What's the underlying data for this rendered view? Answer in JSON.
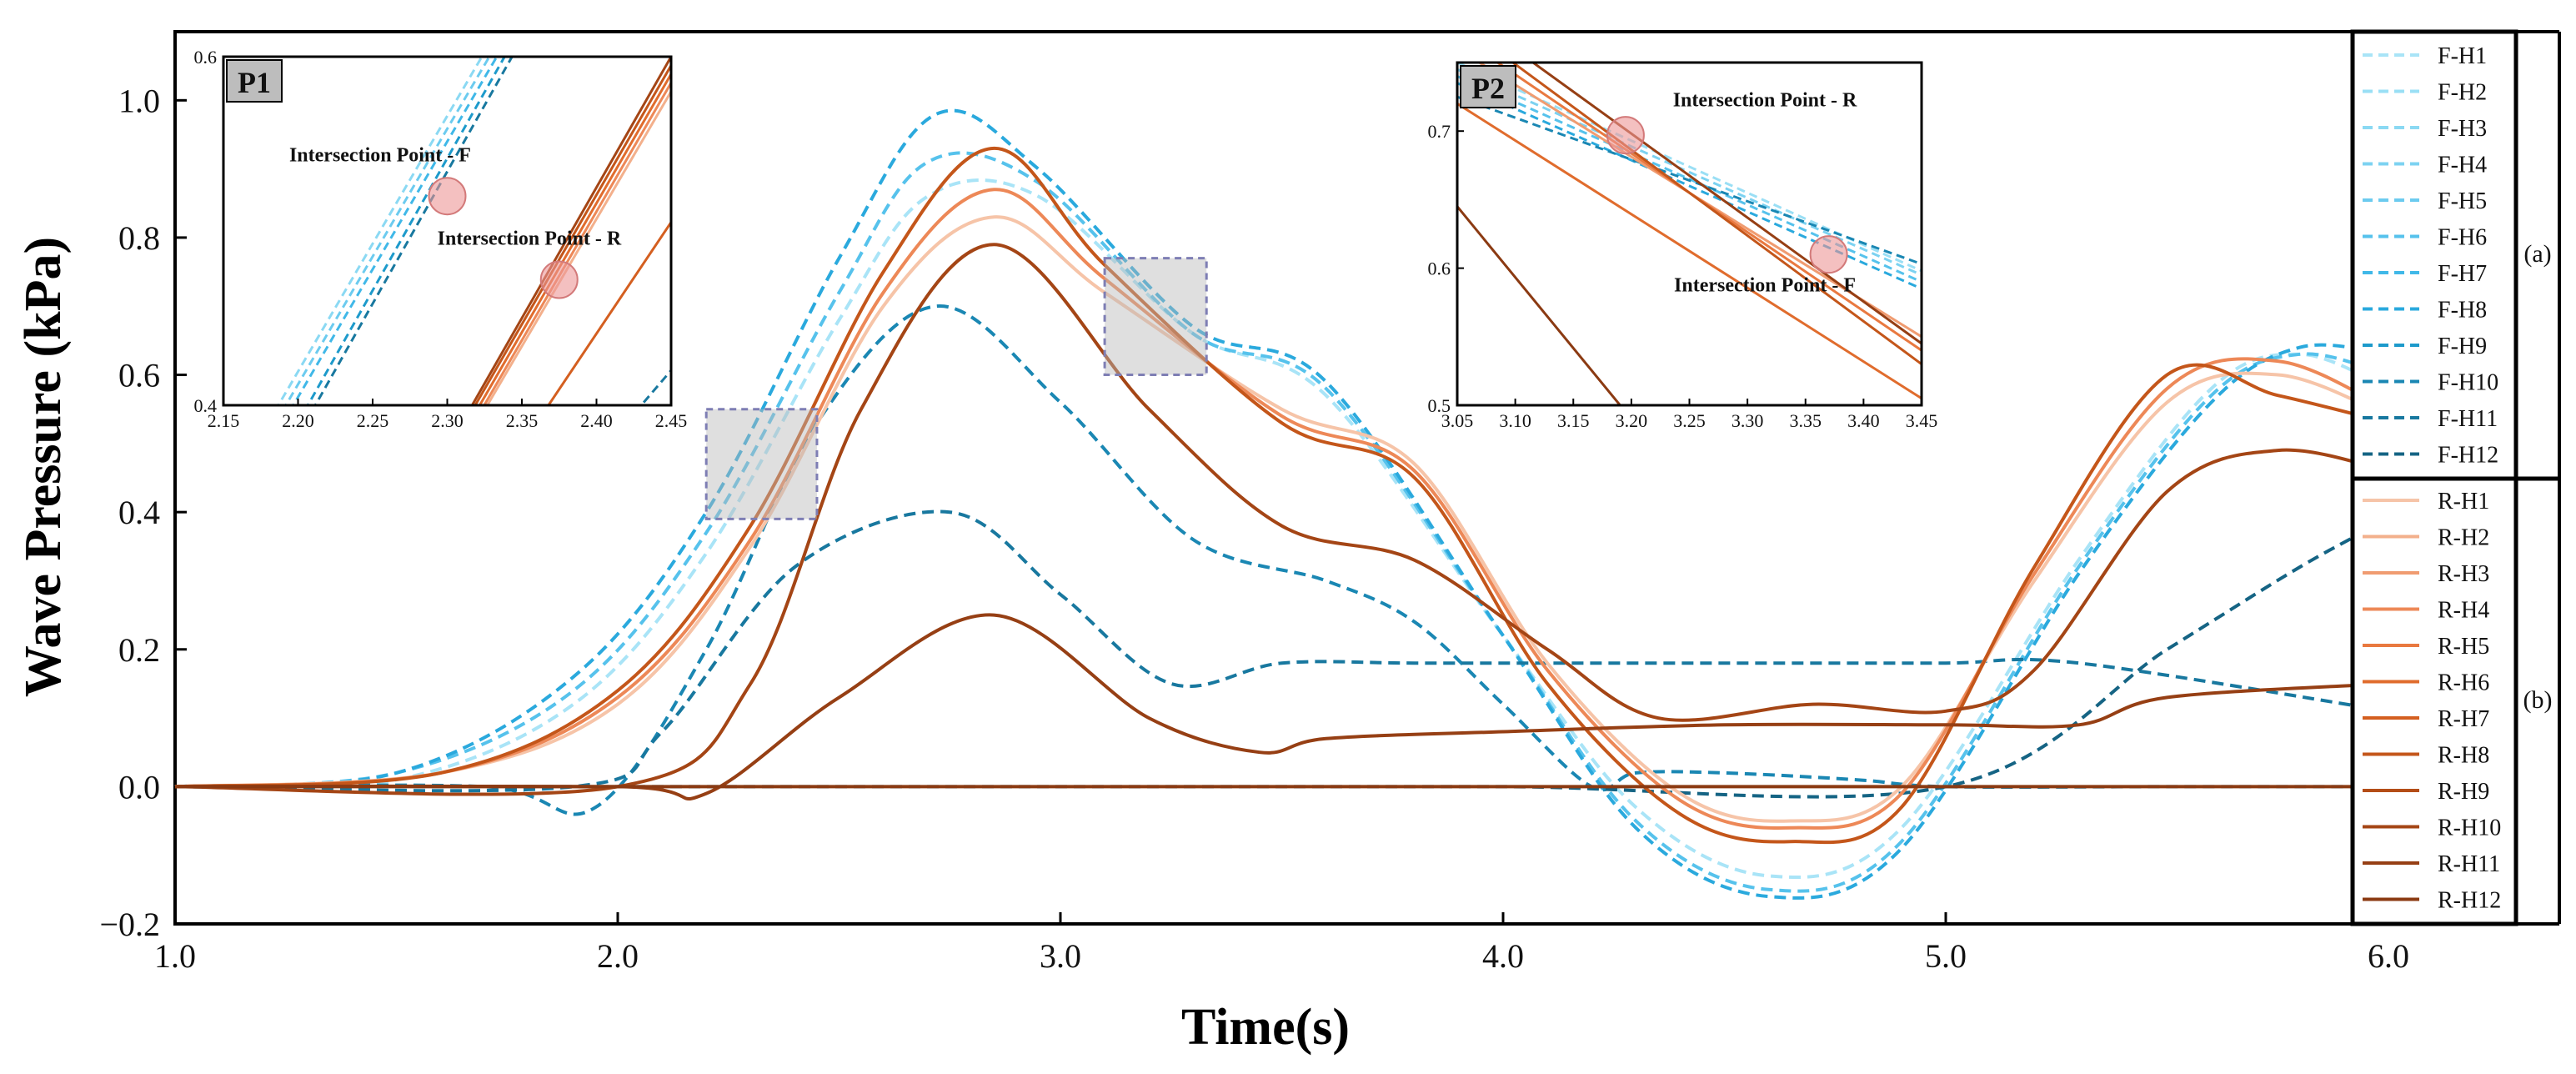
{
  "chart_data": {
    "type": "line",
    "xlabel": "Time(s)",
    "ylabel": "Wave Pressure (kPa)",
    "xlim": [
      1.0,
      6.0
    ],
    "ylim": [
      -0.2,
      1.1
    ],
    "x_ticks": [
      "1.0",
      "2.0",
      "3.0",
      "4.0",
      "5.0",
      "6.0"
    ],
    "y_ticks": [
      "−0.2",
      "0.0",
      "0.2",
      "0.4",
      "0.6",
      "0.8",
      "1.0"
    ],
    "legend_groups": [
      {
        "label": "(a)",
        "entries": [
          "F-H1",
          "F-H2",
          "F-H3",
          "F-H4",
          "F-H5",
          "F-H6",
          "F-H7",
          "F-H8",
          "F-H9",
          "F-H10",
          "F-H11",
          "F-H12"
        ],
        "style": "dashed"
      },
      {
        "label": "(b)",
        "entries": [
          "R-H1",
          "R-H2",
          "R-H3",
          "R-H4",
          "R-H5",
          "R-H6",
          "R-H7",
          "R-H8",
          "R-H9",
          "R-H10",
          "R-H11",
          "R-H12"
        ],
        "style": "solid"
      }
    ],
    "colors": {
      "F": [
        "#a9e4f7",
        "#9adff5",
        "#8bd9f3",
        "#7cd2f1",
        "#6ccbef",
        "#56c2ec",
        "#40b8e8",
        "#2aa9dd",
        "#1d9acb",
        "#1a87b3",
        "#18789f",
        "#156484"
      ],
      "R": [
        "#f6c4a8",
        "#f3b08c",
        "#f09c71",
        "#ed8857",
        "#e97940",
        "#e06c2d",
        "#d45f20",
        "#c4561a",
        "#b44d17",
        "#a44515",
        "#963f14",
        "#8b3a12"
      ]
    },
    "series_F": [
      {
        "name": "F-H1",
        "x": [
          1.0,
          1.5,
          1.9,
          2.2,
          2.5,
          2.7,
          2.95,
          3.3,
          3.6,
          4.0,
          4.3,
          4.6,
          4.9,
          5.3,
          5.6,
          5.8,
          6.0
        ],
        "y": [
          0,
          0.01,
          0.12,
          0.34,
          0.68,
          0.86,
          0.86,
          0.66,
          0.57,
          0.22,
          -0.03,
          -0.13,
          -0.06,
          0.33,
          0.58,
          0.63,
          0.58
        ]
      },
      {
        "name": "F-H6",
        "x": [
          1.0,
          1.5,
          1.9,
          2.2,
          2.5,
          2.7,
          2.95,
          3.3,
          3.6,
          4.0,
          4.3,
          4.6,
          4.9,
          5.3,
          5.6,
          5.8,
          6.0
        ],
        "y": [
          0,
          0.02,
          0.14,
          0.37,
          0.72,
          0.91,
          0.88,
          0.66,
          0.58,
          0.22,
          -0.05,
          -0.15,
          -0.08,
          0.32,
          0.57,
          0.63,
          0.6
        ]
      },
      {
        "name": "F-H8",
        "x": [
          1.0,
          1.5,
          1.9,
          2.2,
          2.5,
          2.72,
          2.95,
          3.3,
          3.6,
          4.0,
          4.3,
          4.6,
          4.9,
          5.3,
          5.6,
          5.8,
          6.0
        ],
        "y": [
          0,
          0.02,
          0.16,
          0.4,
          0.77,
          0.98,
          0.9,
          0.67,
          0.59,
          0.22,
          -0.06,
          -0.16,
          -0.09,
          0.31,
          0.56,
          0.64,
          0.63
        ]
      },
      {
        "name": "F-H10",
        "x": [
          1.0,
          1.7,
          1.95,
          2.2,
          2.45,
          2.72,
          3.0,
          3.3,
          3.6,
          3.8,
          4.0,
          4.2,
          4.3,
          4.5,
          4.8,
          5.0,
          5.5,
          6.0
        ],
        "y": [
          0,
          0,
          -0.03,
          0.2,
          0.53,
          0.7,
          0.56,
          0.36,
          0.3,
          0.24,
          0.12,
          0.0,
          0.02,
          0.02,
          0.01,
          0.0,
          0.0,
          0.0
        ]
      },
      {
        "name": "F-H11",
        "x": [
          1.0,
          1.9,
          2.1,
          2.4,
          2.75,
          3.0,
          3.25,
          3.5,
          3.8,
          4.2,
          4.6,
          5.0,
          5.3,
          6.0
        ],
        "y": [
          0,
          0,
          0.08,
          0.32,
          0.4,
          0.28,
          0.15,
          0.18,
          0.18,
          0.18,
          0.18,
          0.18,
          0.18,
          0.11
        ]
      },
      {
        "name": "F-H12",
        "x": [
          1.0,
          2.0,
          3.0,
          4.0,
          5.0,
          5.5,
          5.8,
          6.0
        ],
        "y": [
          0,
          0,
          0,
          0,
          0,
          0.2,
          0.32,
          0.39
        ]
      }
    ],
    "series_R": [
      {
        "name": "R-H1",
        "x": [
          1.0,
          1.6,
          2.0,
          2.3,
          2.6,
          2.85,
          3.1,
          3.5,
          3.8,
          4.1,
          4.4,
          4.65,
          4.9,
          5.2,
          5.5,
          5.75,
          6.0
        ],
        "y": [
          0,
          0.02,
          0.12,
          0.35,
          0.7,
          0.83,
          0.72,
          0.55,
          0.47,
          0.18,
          -0.01,
          -0.05,
          0.0,
          0.3,
          0.56,
          0.6,
          0.54
        ]
      },
      {
        "name": "R-H4",
        "x": [
          1.0,
          1.6,
          2.0,
          2.3,
          2.6,
          2.85,
          3.1,
          3.5,
          3.8,
          4.1,
          4.4,
          4.65,
          4.9,
          5.2,
          5.5,
          5.75,
          6.0
        ],
        "y": [
          0,
          0.02,
          0.13,
          0.36,
          0.72,
          0.87,
          0.74,
          0.54,
          0.46,
          0.17,
          -0.02,
          -0.06,
          -0.01,
          0.31,
          0.58,
          0.62,
          0.55
        ]
      },
      {
        "name": "R-H8",
        "x": [
          1.0,
          1.6,
          2.0,
          2.3,
          2.6,
          2.85,
          3.1,
          3.5,
          3.8,
          4.1,
          4.4,
          4.65,
          4.9,
          5.2,
          5.5,
          5.75,
          6.0
        ],
        "y": [
          0,
          0.02,
          0.14,
          0.38,
          0.75,
          0.93,
          0.76,
          0.53,
          0.45,
          0.15,
          -0.04,
          -0.08,
          -0.03,
          0.32,
          0.6,
          0.57,
          0.53
        ]
      },
      {
        "name": "R-H10",
        "x": [
          1.0,
          2.0,
          2.3,
          2.55,
          2.85,
          3.2,
          3.5,
          3.8,
          4.1,
          4.35,
          4.7,
          5.0,
          5.2,
          5.5,
          5.75,
          6.0
        ],
        "y": [
          0,
          0,
          0.15,
          0.55,
          0.79,
          0.55,
          0.38,
          0.33,
          0.2,
          0.1,
          0.12,
          0.11,
          0.17,
          0.43,
          0.49,
          0.46
        ]
      },
      {
        "name": "R-H11",
        "x": [
          1.0,
          2.0,
          2.2,
          2.5,
          2.85,
          3.2,
          3.45,
          3.6,
          4.0,
          4.5,
          5.0,
          5.3,
          5.5,
          6.0
        ],
        "y": [
          0,
          0,
          -0.01,
          0.13,
          0.25,
          0.1,
          0.05,
          0.07,
          0.08,
          0.09,
          0.09,
          0.09,
          0.13,
          0.15
        ]
      },
      {
        "name": "R-H12",
        "x": [
          1.0,
          2.0,
          3.0,
          4.0,
          5.0,
          6.0
        ],
        "y": [
          0,
          0,
          0,
          0,
          0,
          0
        ]
      }
    ],
    "insets": [
      {
        "label": "P1",
        "xlim": [
          2.15,
          2.45
        ],
        "ylim": [
          0.4,
          0.6
        ],
        "x_ticks": [
          "2.15",
          "2.20",
          "2.25",
          "2.30",
          "2.35",
          "2.40",
          "2.45"
        ],
        "y_ticks": [
          "0.4",
          "0.6"
        ],
        "annotations": [
          {
            "text": "Intersection Point - F",
            "x": 2.3,
            "y": 0.52
          },
          {
            "text": "Intersection Point - R",
            "x": 2.375,
            "y": 0.472
          }
        ],
        "highlight_window": {
          "x": [
            2.2,
            2.45
          ],
          "y": [
            0.39,
            0.55
          ]
        }
      },
      {
        "label": "P2",
        "xlim": [
          3.05,
          3.45
        ],
        "ylim": [
          0.5,
          0.75
        ],
        "x_ticks": [
          "3.05",
          "3.10",
          "3.15",
          "3.20",
          "3.25",
          "3.30",
          "3.35",
          "3.40",
          "3.45"
        ],
        "y_ticks": [
          "0.5",
          "0.6",
          "0.7"
        ],
        "annotations": [
          {
            "text": "Intersection Point - R",
            "x": 3.195,
            "y": 0.697
          },
          {
            "text": "Intersection Point - F",
            "x": 3.37,
            "y": 0.61
          }
        ],
        "highlight_window": {
          "x": [
            3.1,
            3.33
          ],
          "y": [
            0.6,
            0.77
          ]
        }
      }
    ]
  }
}
